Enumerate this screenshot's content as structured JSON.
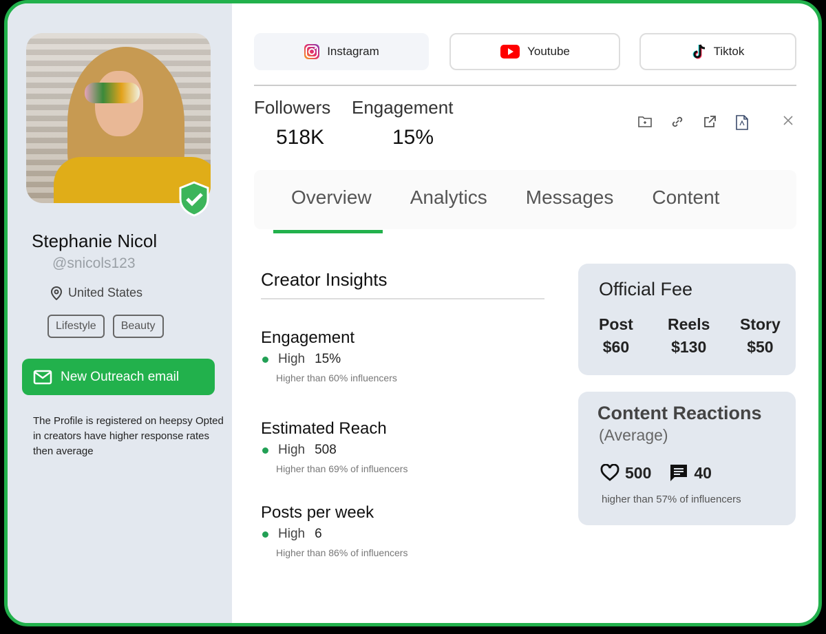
{
  "profile": {
    "name": "Stephanie Nicol",
    "handle": "@snicols123",
    "location": "United States",
    "tags": [
      "Lifestyle",
      "Beauty"
    ],
    "outreach_label": "New Outreach email",
    "note": "The Profile is registered on heepsy Opted in creators have higher response rates then average",
    "verified": true
  },
  "platforms": [
    {
      "label": "Instagram",
      "icon": "instagram-icon",
      "selected": true
    },
    {
      "label": "Youtube",
      "icon": "youtube-icon"
    },
    {
      "label": "Tiktok",
      "icon": "tiktok-icon"
    }
  ],
  "stats": {
    "followers_label": "Followers",
    "followers": "518K",
    "engagement_label": "Engagement",
    "engagement": "15%"
  },
  "toolbar_icons": [
    "folder-add-icon",
    "link-icon",
    "external-link-icon",
    "pdf-icon",
    "close-icon"
  ],
  "tabs": [
    {
      "label": "Overview",
      "active": true
    },
    {
      "label": "Analytics"
    },
    {
      "label": "Messages"
    },
    {
      "label": "Content"
    }
  ],
  "insights": {
    "title": "Creator Insights",
    "metrics": [
      {
        "title": "Engagement",
        "level": "High",
        "value": "15%",
        "sub": "Higher than 60% influencers"
      },
      {
        "title": "Estimated Reach",
        "level": "High",
        "value": "508",
        "sub": "Higher than 69% of influencers"
      },
      {
        "title": "Posts per week",
        "level": "High",
        "value": "6",
        "sub": "Higher than 86% of influencers"
      }
    ]
  },
  "fee": {
    "title": "Official Fee",
    "items": [
      {
        "label": "Post",
        "value": "$60"
      },
      {
        "label": "Reels",
        "value": "$130"
      },
      {
        "label": "Story",
        "value": "$50"
      }
    ]
  },
  "reactions": {
    "title": "Content Reactions",
    "subtitle": "(Average)",
    "likes": "500",
    "comments": "40",
    "note": "higher than 57% of influencers"
  },
  "colors": {
    "accent": "#22b14c",
    "sidebar": "#e3e8ef"
  }
}
